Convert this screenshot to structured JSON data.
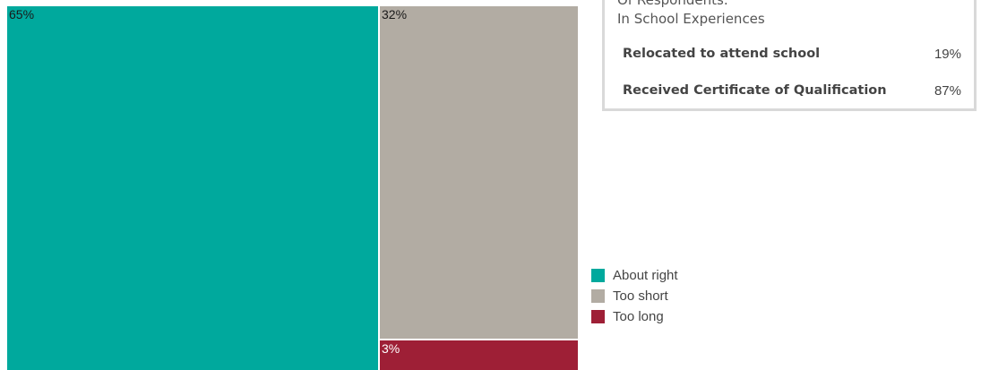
{
  "chart_data": {
    "type": "treemap",
    "series": [
      {
        "name": "About right",
        "value": 65,
        "label": "65%",
        "color": "#00a99d"
      },
      {
        "name": "Too short",
        "value": 32,
        "label": "32%",
        "color": "#b2aca3"
      },
      {
        "name": "Too long",
        "value": 3,
        "label": "3%",
        "color": "#9e1f36"
      }
    ],
    "legend": {
      "position": "bottom-right"
    }
  },
  "info_box": {
    "heading_line1": "Of Respondents:",
    "heading_line2": "In School Experiences",
    "rows": [
      {
        "label": "Relocated to attend school",
        "value": "19%"
      },
      {
        "label": "Received Certificate of Qualification",
        "value": "87%"
      }
    ]
  }
}
